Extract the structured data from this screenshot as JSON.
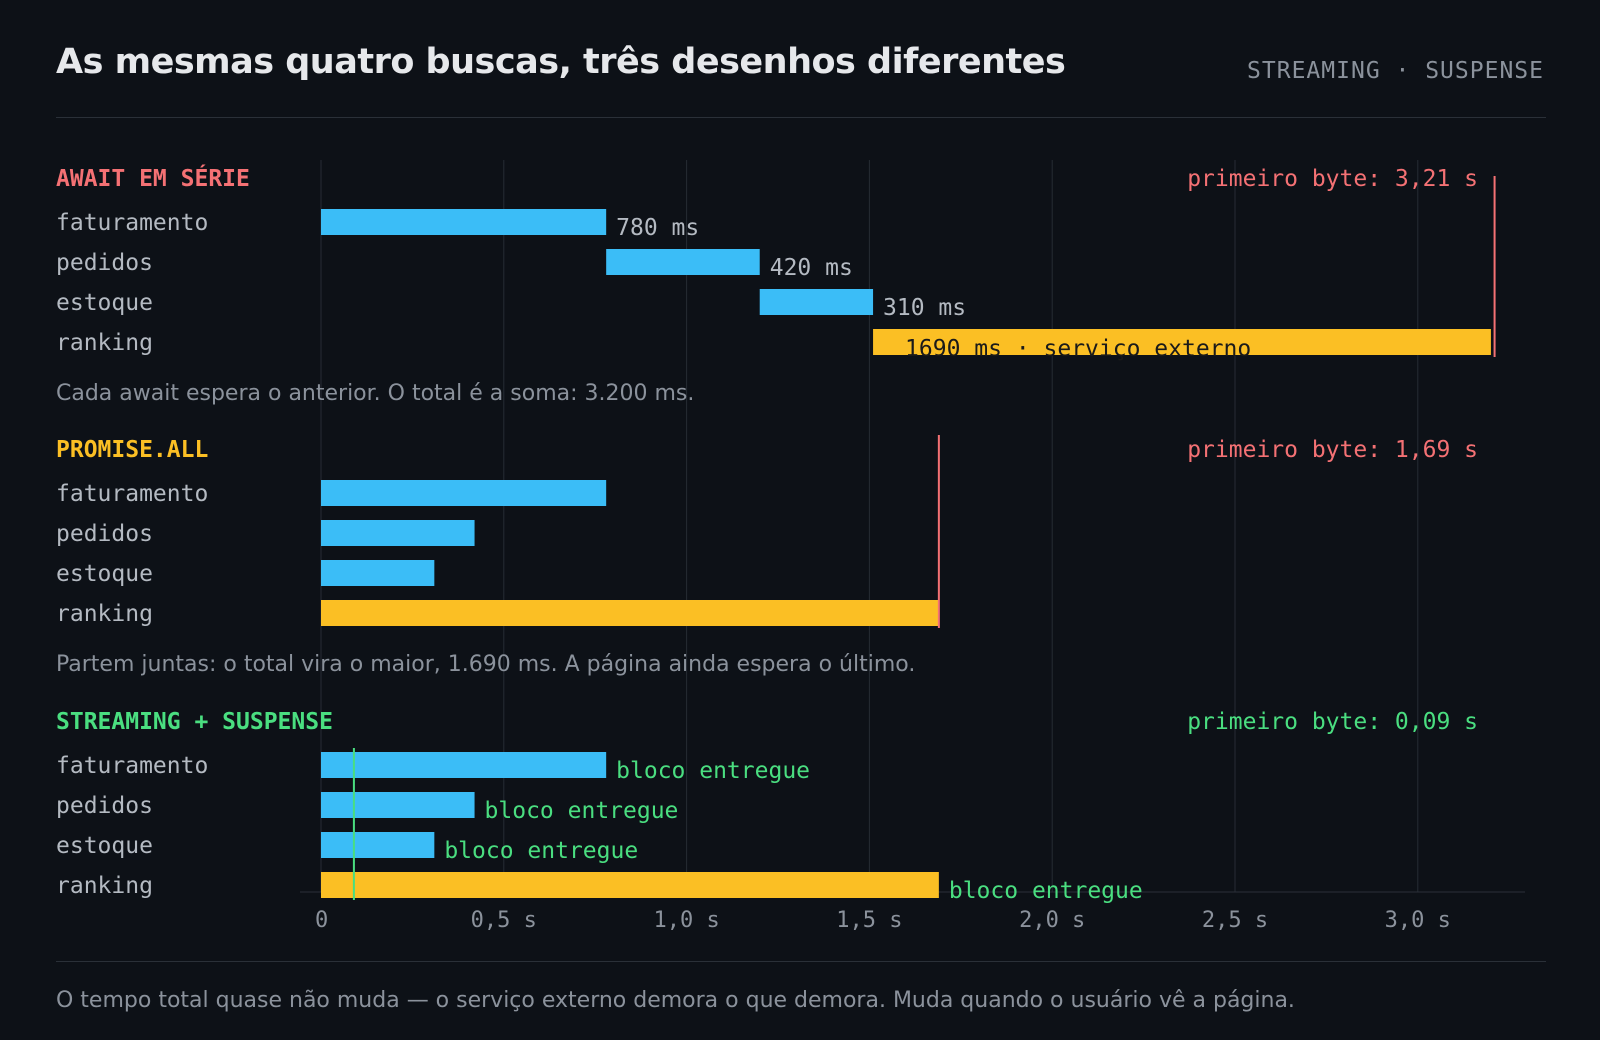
{
  "header": {
    "title": "As mesmas quatro buscas, três desenhos diferentes",
    "tag": "STREAMING · SUSPENSE"
  },
  "footer": {
    "note": "O tempo total quase não muda — o serviço externo demora o que demora. Muda quando o usuário vê a página."
  },
  "colors": {
    "background": "#0d1117",
    "bar_blue": "#3bbdf7",
    "bar_yellow": "#fbbf24",
    "serial_red": "#f47174",
    "promise_yellow": "#fbbf24",
    "streaming_green": "#4ade80",
    "label_gray": "#b4bac2",
    "muted": "#8b929c",
    "grid": "#262c34"
  },
  "chart_data": {
    "type": "bar",
    "orientation": "horizontal-gantt",
    "x_unit": "ms",
    "xlim": [
      0,
      3200
    ],
    "x_ticks": [
      {
        "value": 0,
        "label": "0"
      },
      {
        "value": 500,
        "label": "0,5 s"
      },
      {
        "value": 1000,
        "label": "1,0 s"
      },
      {
        "value": 1500,
        "label": "1,5 s"
      },
      {
        "value": 2000,
        "label": "2,0 s"
      },
      {
        "value": 2500,
        "label": "2,5 s"
      },
      {
        "value": 3000,
        "label": "3,0 s"
      }
    ],
    "grid": true,
    "panels": [
      {
        "key": "serial",
        "title": "AWAIT EM SÉRIE",
        "first_byte_label": "primeiro byte: 3,21 s",
        "first_byte_ms": 3210,
        "caption": "Cada await espera o anterior. O total é a soma: 3.200 ms.",
        "rows": [
          {
            "label": "faturamento",
            "start": 0,
            "end": 780,
            "color": "blue",
            "annotation": "780 ms",
            "annotation_pos": "after"
          },
          {
            "label": "pedidos",
            "start": 780,
            "end": 1200,
            "color": "blue",
            "annotation": "420 ms",
            "annotation_pos": "after"
          },
          {
            "label": "estoque",
            "start": 1200,
            "end": 1510,
            "color": "blue",
            "annotation": "310 ms",
            "annotation_pos": "after"
          },
          {
            "label": "ranking",
            "start": 1510,
            "end": 3200,
            "color": "yellow",
            "annotation": "1690 ms · serviço externo",
            "annotation_pos": "inside"
          }
        ]
      },
      {
        "key": "promise",
        "title": "PROMISE.ALL",
        "first_byte_label": "primeiro byte: 1,69 s",
        "first_byte_ms": 1690,
        "caption": "Partem juntas: o total vira o maior, 1.690 ms. A página ainda espera o último.",
        "rows": [
          {
            "label": "faturamento",
            "start": 0,
            "end": 780,
            "color": "blue",
            "annotation": ""
          },
          {
            "label": "pedidos",
            "start": 0,
            "end": 420,
            "color": "blue",
            "annotation": ""
          },
          {
            "label": "estoque",
            "start": 0,
            "end": 310,
            "color": "blue",
            "annotation": ""
          },
          {
            "label": "ranking",
            "start": 0,
            "end": 1690,
            "color": "yellow",
            "annotation": ""
          }
        ]
      },
      {
        "key": "streaming",
        "title": "STREAMING + SUSPENSE",
        "first_byte_label": "primeiro byte: 0,09 s",
        "first_byte_ms": 90,
        "caption": "",
        "rows": [
          {
            "label": "faturamento",
            "start": 0,
            "end": 780,
            "color": "blue",
            "annotation": "bloco entregue",
            "annotation_pos": "after"
          },
          {
            "label": "pedidos",
            "start": 0,
            "end": 420,
            "color": "blue",
            "annotation": "bloco entregue",
            "annotation_pos": "after"
          },
          {
            "label": "estoque",
            "start": 0,
            "end": 310,
            "color": "blue",
            "annotation": "bloco entregue",
            "annotation_pos": "after"
          },
          {
            "label": "ranking",
            "start": 0,
            "end": 1690,
            "color": "yellow",
            "annotation": "bloco entregue",
            "annotation_pos": "after"
          }
        ]
      }
    ]
  }
}
